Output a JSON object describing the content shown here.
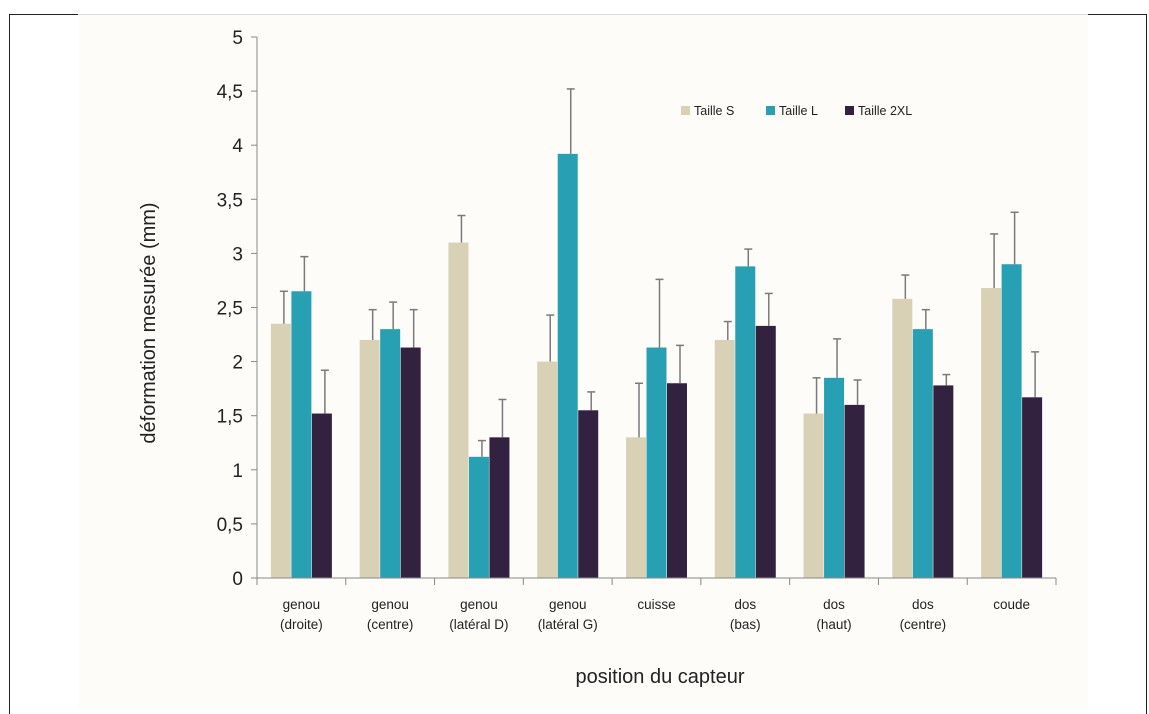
{
  "chart_data": {
    "type": "bar",
    "xlabel": "position du capteur",
    "ylabel": "déformation mesurée (mm)",
    "ylim": [
      0,
      5
    ],
    "yticks": [
      0,
      0.5,
      1,
      1.5,
      2,
      2.5,
      3,
      3.5,
      4,
      4.5,
      5
    ],
    "ytick_labels": [
      "0",
      "0,5",
      "1",
      "1,5",
      "2",
      "2,5",
      "3",
      "3,5",
      "4",
      "4,5",
      "5"
    ],
    "grid": false,
    "legend_position": "top-right",
    "categories": [
      [
        "genou",
        "(droite)"
      ],
      [
        "genou",
        "(centre)"
      ],
      [
        "genou",
        "(latéral D)"
      ],
      [
        "genou",
        "(latéral G)"
      ],
      [
        "cuisse"
      ],
      [
        "dos",
        "(bas)"
      ],
      [
        "dos",
        "(haut)"
      ],
      [
        "dos",
        "(centre)"
      ],
      [
        "coude"
      ]
    ],
    "series": [
      {
        "name": "Taille S",
        "color": "#d8d1b6",
        "values": [
          2.35,
          2.2,
          3.1,
          2.0,
          1.3,
          2.2,
          1.52,
          2.58,
          2.68
        ],
        "errors": [
          0.3,
          0.28,
          0.25,
          0.43,
          0.5,
          0.17,
          0.33,
          0.22,
          0.5
        ]
      },
      {
        "name": "Taille L",
        "color": "#27a0b4",
        "values": [
          2.65,
          2.3,
          1.12,
          3.92,
          2.13,
          2.88,
          1.85,
          2.3,
          2.9
        ],
        "errors": [
          0.32,
          0.25,
          0.15,
          0.6,
          0.63,
          0.16,
          0.36,
          0.18,
          0.48
        ]
      },
      {
        "name": "Taille 2XL",
        "color": "#33223f",
        "values": [
          1.52,
          2.13,
          1.3,
          1.55,
          1.8,
          2.33,
          1.6,
          1.78,
          1.67
        ],
        "errors": [
          0.4,
          0.35,
          0.35,
          0.17,
          0.35,
          0.3,
          0.23,
          0.1,
          0.42
        ]
      }
    ]
  }
}
